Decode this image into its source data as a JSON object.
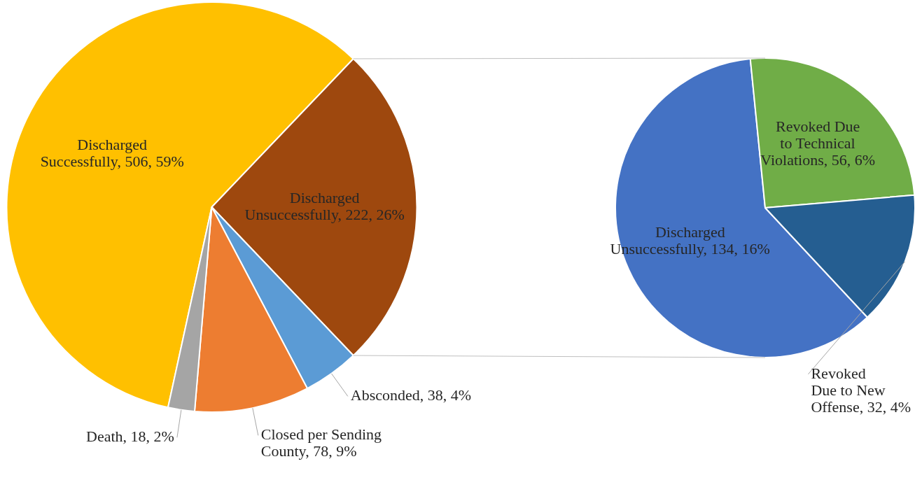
{
  "chart_data": [
    {
      "type": "pie",
      "categories": [
        "Discharged Successfully",
        "Discharged Unsuccessfully",
        "Absconded",
        "Closed per Sending County",
        "Death"
      ],
      "values": [
        506,
        222,
        38,
        78,
        18
      ],
      "colors": [
        "#ffc000",
        "#9e480e",
        "#5b9bd5",
        "#ed7d31",
        "#a5a5a5"
      ],
      "value_labels": [
        "506, 59%",
        "222, 26%",
        "38, 4%",
        "78, 9%",
        "18, 2%"
      ],
      "legend": false
    },
    {
      "type": "pie",
      "categories": [
        "Discharged Unsuccessfully",
        "Revoked Due to Technical Violations",
        "Revoked Due to New Offense"
      ],
      "values": [
        134,
        56,
        32
      ],
      "colors": [
        "#4472c4",
        "#70ad47",
        "#255e91"
      ],
      "value_labels": [
        "134, 16%",
        "56, 6%",
        "32, 4%"
      ],
      "legend": false
    }
  ]
}
